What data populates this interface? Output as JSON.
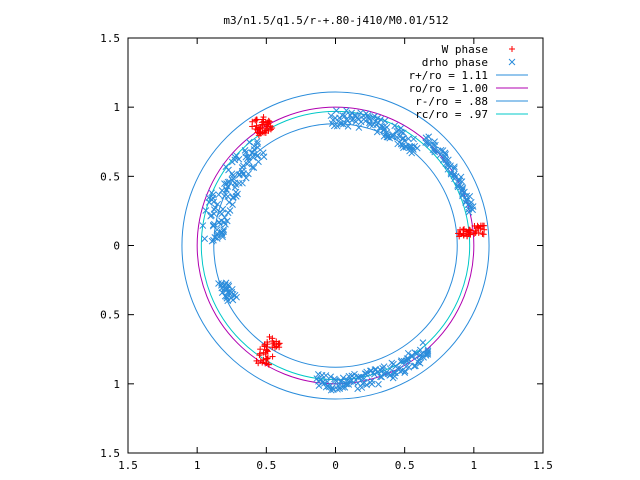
{
  "chart_data": {
    "type": "scatter",
    "title": "m3/n1.5/q1.5/r-+.80-j410/M0.01/512",
    "xlabel": "",
    "ylabel": "",
    "xlim": [
      -1.5,
      1.5
    ],
    "ylim": [
      -1.5,
      1.5
    ],
    "x_tick_values": [
      -1.5,
      -1,
      -0.5,
      0,
      0.5,
      1,
      1.5
    ],
    "x_tick_labels": [
      "1.5",
      "1",
      "0.5",
      "0",
      "0.5",
      "1",
      "1.5"
    ],
    "y_tick_values": [
      1.5,
      1,
      0.5,
      0,
      -0.5,
      -1,
      -1.5
    ],
    "y_tick_labels": [
      "1.5",
      "1",
      "0.5",
      "0",
      "0.5",
      "1",
      "1.5"
    ],
    "grid": false,
    "legend_position": "top-right",
    "series": [
      {
        "name": "W phase",
        "kind": "points",
        "marker": "plus",
        "color": "#ff0000",
        "segments": [
          {
            "r_range": [
              0.95,
              1.08
            ],
            "angle_range_deg": [
              118,
              125
            ],
            "n": 40
          },
          {
            "r_range": [
              0.88,
              1.09
            ],
            "angle_range_deg": [
              4,
              8
            ],
            "n": 40
          },
          {
            "r_range": [
              0.81,
              1.02
            ],
            "angle_range_deg": [
              234,
              241
            ],
            "n": 40
          }
        ]
      },
      {
        "name": "drho phase",
        "kind": "points",
        "marker": "x",
        "color": "#2a8cdb",
        "segments": [
          {
            "r_range": [
              0.86,
              0.98
            ],
            "angle_range_deg": [
              50,
              92
            ],
            "n": 90
          },
          {
            "r_range": [
              0.98,
              1.04
            ],
            "angle_range_deg": [
              14,
              50
            ],
            "n": 60
          },
          {
            "r_range": [
              0.8,
              0.98
            ],
            "angle_range_deg": [
              127,
              178
            ],
            "n": 110
          },
          {
            "r_range": [
              0.8,
              0.9
            ],
            "angle_range_deg": [
              198,
              208
            ],
            "n": 25
          },
          {
            "r_range": [
              0.94,
              1.05
            ],
            "angle_range_deg": [
              262,
              312
            ],
            "n": 120
          }
        ]
      },
      {
        "name": "r+/ro = 1.11",
        "kind": "circle",
        "radius": 1.11,
        "color": "#2a8cdb"
      },
      {
        "name": "ro/ro = 1.00",
        "kind": "circle",
        "radius": 1.0,
        "color": "#b000b0"
      },
      {
        "name": "r-/ro = .88",
        "kind": "circle",
        "radius": 0.88,
        "color": "#2a8cdb"
      },
      {
        "name": "rc/ro = .97",
        "kind": "circle",
        "radius": 0.97,
        "color": "#00c8c8"
      }
    ]
  }
}
